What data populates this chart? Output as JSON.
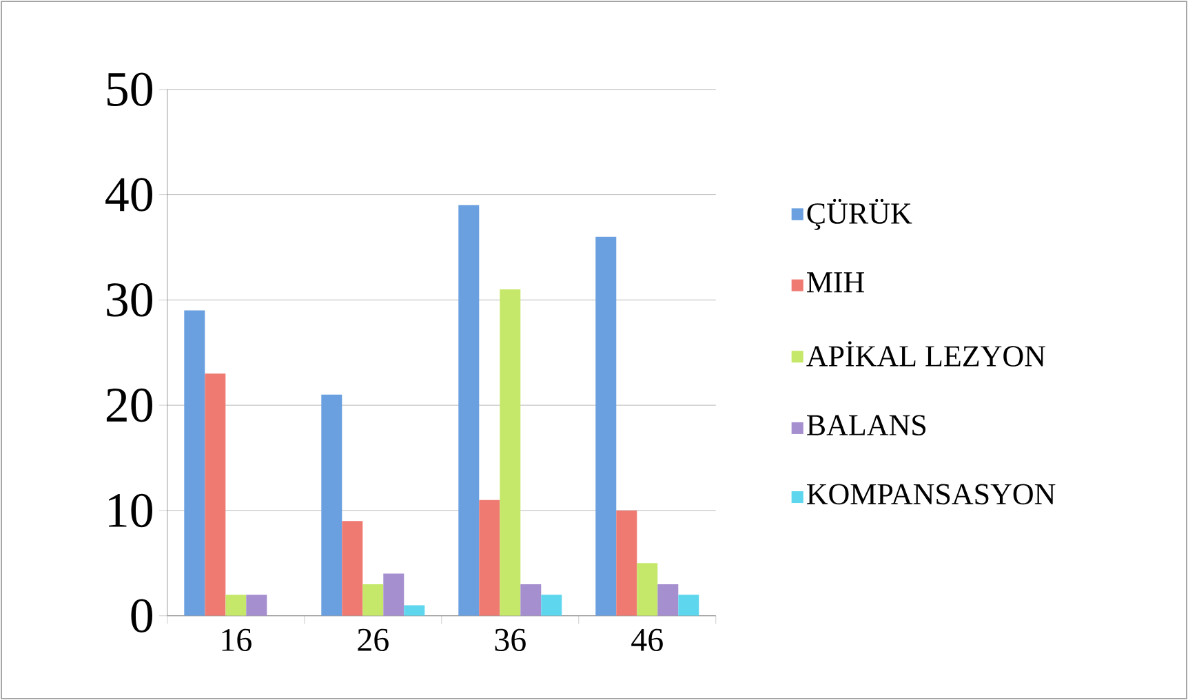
{
  "chart_data": {
    "type": "bar",
    "categories": [
      "16",
      "26",
      "36",
      "46"
    ],
    "series": [
      {
        "name": "ÇÜRÜK",
        "color": "#6a9fe0",
        "values": [
          29,
          21,
          39,
          36
        ]
      },
      {
        "name": "MIH",
        "color": "#ee7a72",
        "values": [
          23,
          9,
          11,
          10
        ]
      },
      {
        "name": "APİKAL LEZYON",
        "color": "#c6e86a",
        "values": [
          2,
          3,
          31,
          5
        ]
      },
      {
        "name": "BALANS",
        "color": "#a58fcf",
        "values": [
          2,
          4,
          3,
          3
        ]
      },
      {
        "name": "KOMPANSASYON",
        "color": "#5dd6ee",
        "values": [
          0,
          1,
          2,
          2
        ]
      }
    ],
    "ylim": [
      0,
      50
    ],
    "yticks": [
      0,
      10,
      20,
      30,
      40,
      50
    ],
    "grid": "y",
    "legend": "right"
  }
}
